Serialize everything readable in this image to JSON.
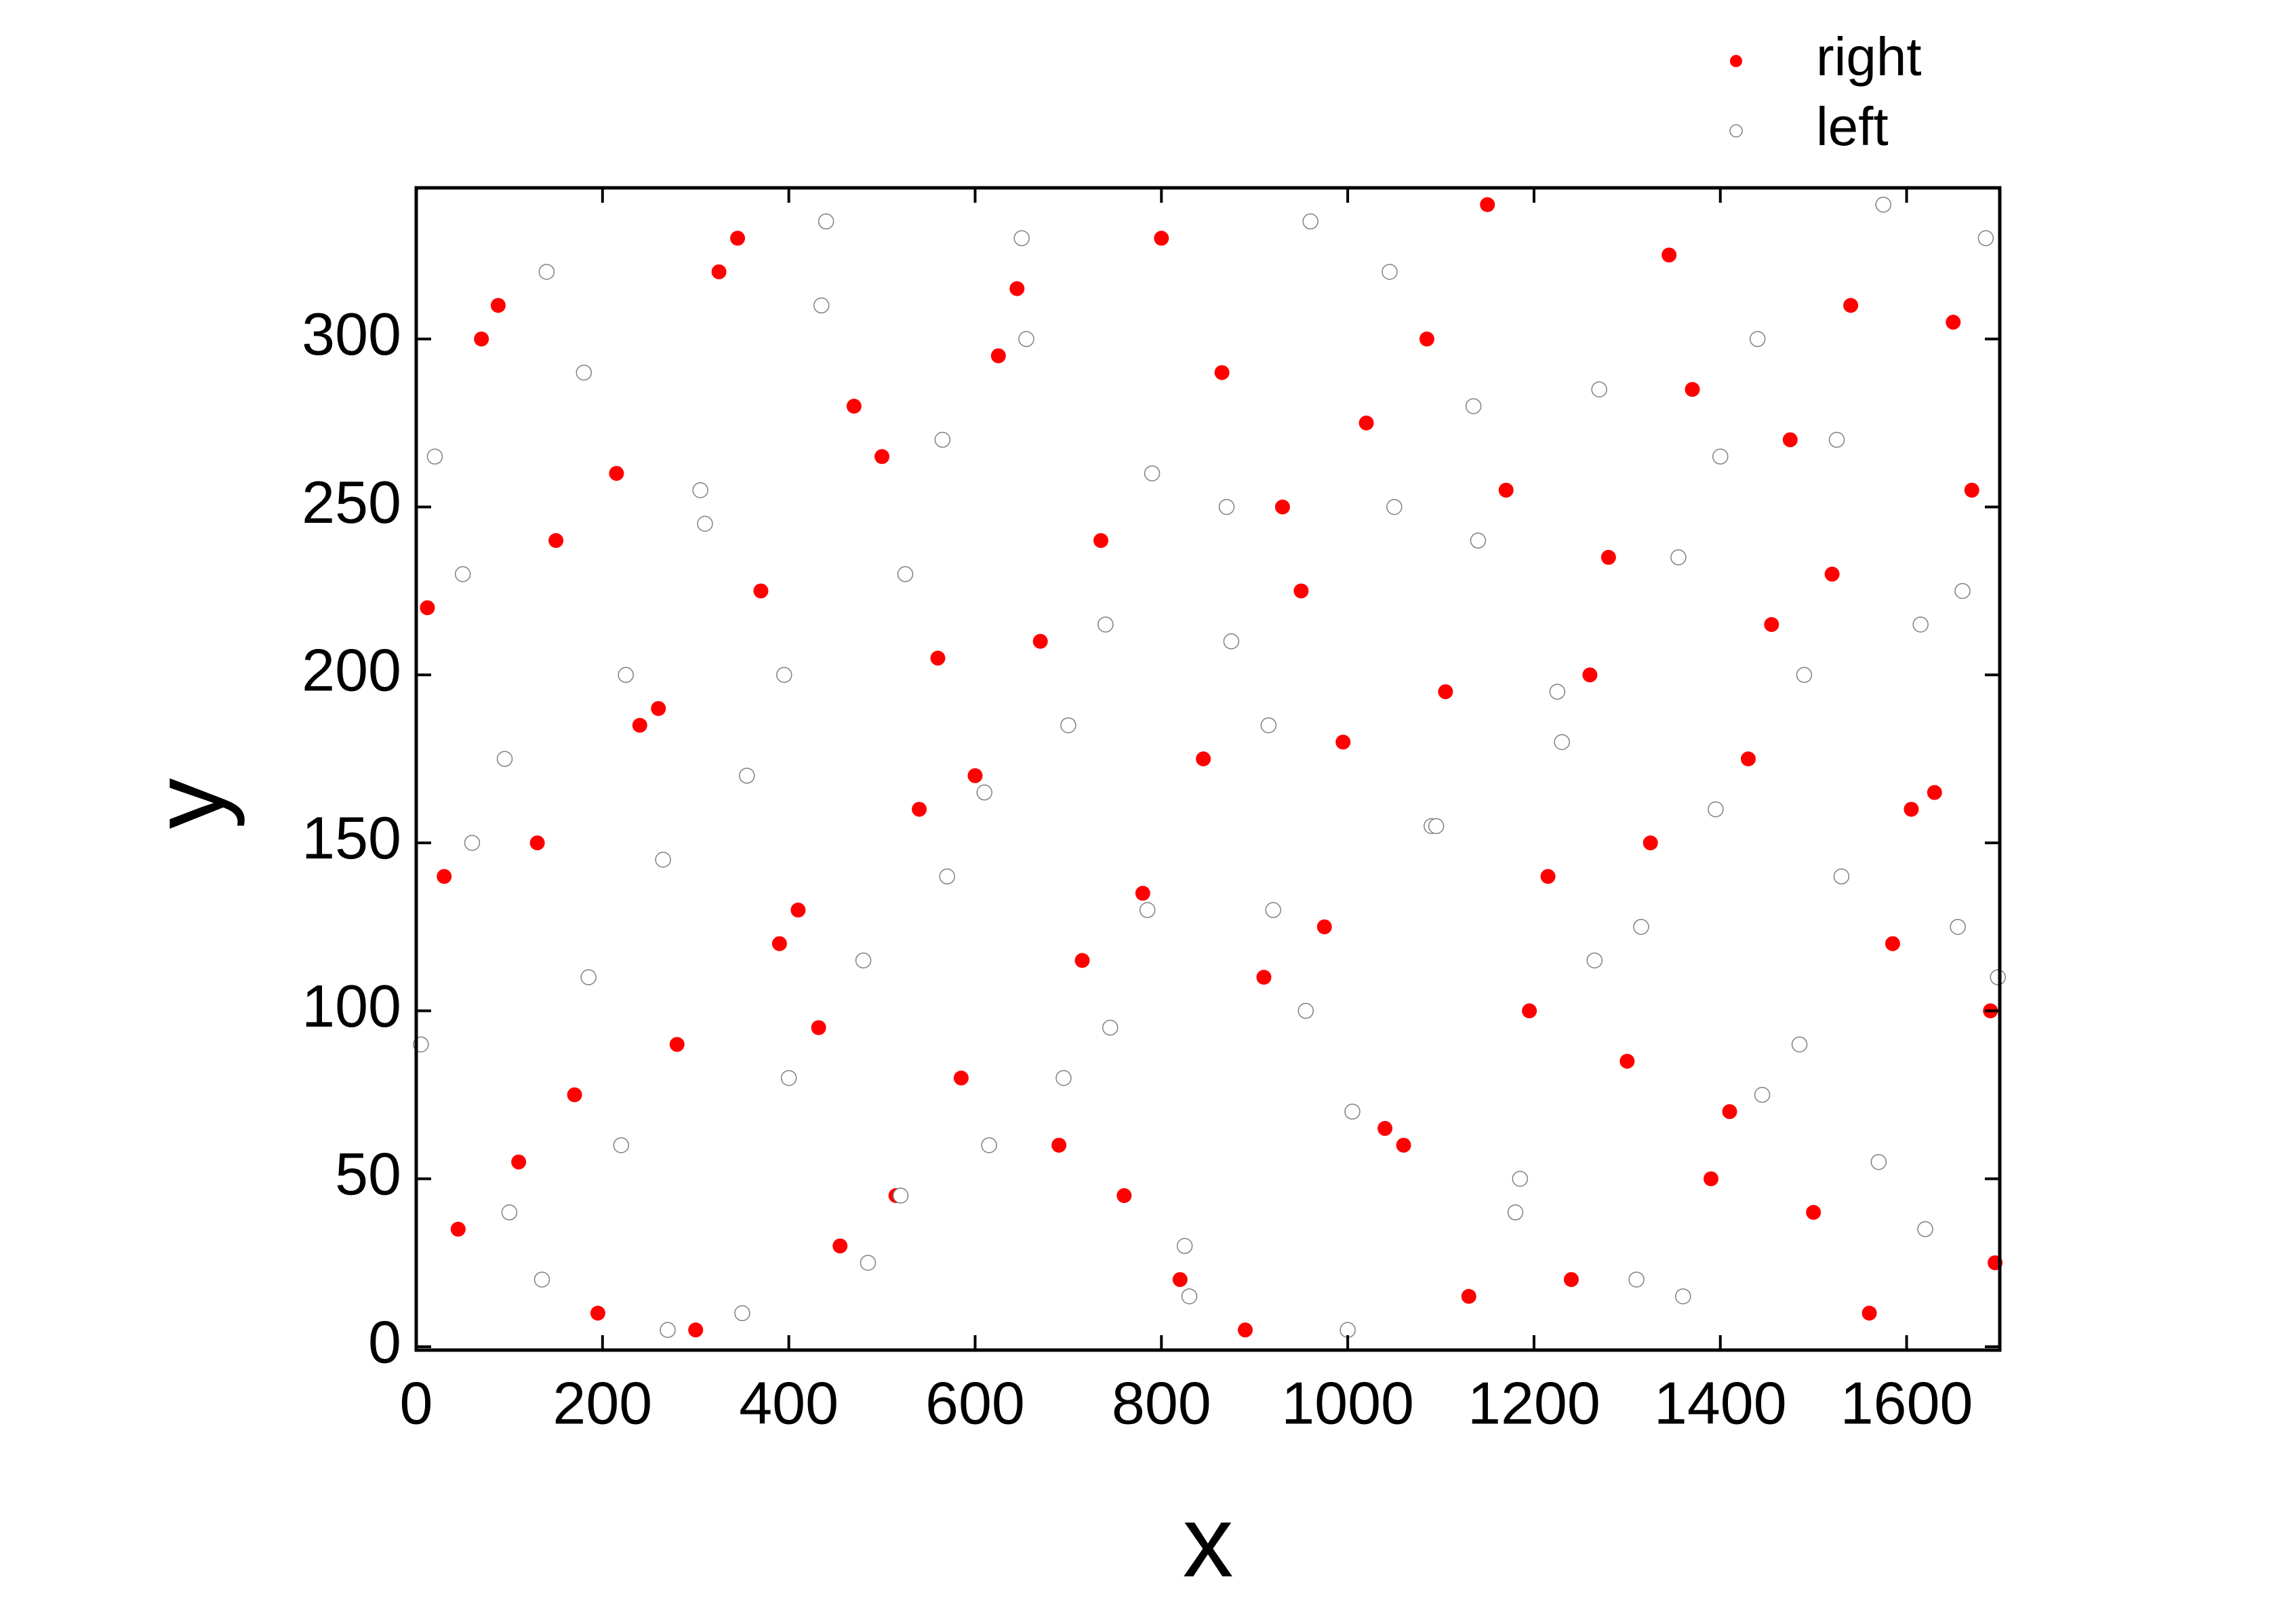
{
  "chart_data": {
    "type": "scatter",
    "xlabel": "x",
    "ylabel": "y",
    "xlim": [
      0,
      1700
    ],
    "ylim": [
      -1,
      345
    ],
    "xticks": [
      0,
      200,
      400,
      600,
      800,
      1000,
      1200,
      1400,
      1600
    ],
    "yticks": [
      0,
      50,
      100,
      150,
      200,
      250,
      300
    ],
    "legend": "top-right",
    "series": [
      {
        "name": "right",
        "color": "#ff0000",
        "filled": true,
        "x": [
          12,
          45,
          88,
          130,
          170,
          215,
          260,
          300,
          345,
          390,
          432,
          470,
          515,
          560,
          600,
          645,
          690,
          735,
          780,
          820,
          865,
          910,
          950,
          995,
          1040,
          1085,
          1130,
          1170,
          1215,
          1260,
          1300,
          1345,
          1390,
          1430,
          1475,
          1520,
          1560,
          1605,
          1650,
          1690,
          30,
          70,
          110,
          150,
          195,
          240,
          280,
          325,
          370,
          410,
          455,
          500,
          540,
          585,
          625,
          670,
          715,
          760,
          800,
          845,
          890,
          930,
          975,
          1020,
          1060,
          1105,
          1150,
          1195,
          1240,
          1280,
          1325,
          1370,
          1410,
          1455,
          1500,
          1540,
          1585,
          1630,
          1670,
          1695
        ],
        "values": [
          220,
          35,
          310,
          150,
          75,
          260,
          190,
          5,
          330,
          120,
          95,
          280,
          45,
          205,
          170,
          315,
          60,
          240,
          135,
          20,
          290,
          110,
          225,
          180,
          65,
          300,
          15,
          255,
          140,
          200,
          85,
          325,
          50,
          175,
          270,
          230,
          10,
          160,
          305,
          100,
          140,
          300,
          55,
          240,
          10,
          185,
          90,
          320,
          225,
          130,
          30,
          265,
          160,
          80,
          295,
          210,
          115,
          45,
          330,
          175,
          5,
          250,
          125,
          275,
          60,
          195,
          340,
          100,
          20,
          235,
          150,
          285,
          70,
          215,
          40,
          310,
          120,
          165,
          255,
          25
        ]
      },
      {
        "name": "left",
        "color": "#808080",
        "filled": false,
        "x": [
          20,
          60,
          100,
          140,
          185,
          225,
          270,
          310,
          355,
          400,
          440,
          485,
          525,
          570,
          615,
          655,
          700,
          745,
          790,
          830,
          875,
          920,
          960,
          1005,
          1050,
          1090,
          1135,
          1180,
          1225,
          1265,
          1310,
          1355,
          1395,
          1440,
          1485,
          1525,
          1570,
          1615,
          1655,
          1685,
          5,
          50,
          95,
          135,
          180,
          220,
          265,
          305,
          350,
          395,
          435,
          480,
          520,
          565,
          610,
          650,
          695,
          740,
          785,
          825,
          870,
          915,
          955,
          1000,
          1045,
          1095,
          1140,
          1185,
          1230,
          1270,
          1315,
          1360,
          1400,
          1445,
          1490,
          1530,
          1575,
          1620,
          1660,
          1698
        ],
        "values": [
          265,
          150,
          40,
          320,
          110,
          200,
          5,
          245,
          170,
          80,
          335,
          25,
          230,
          140,
          60,
          300,
          185,
          95,
          260,
          15,
          210,
          130,
          335,
          70,
          250,
          155,
          280,
          40,
          195,
          115,
          20,
          235,
          160,
          300,
          90,
          270,
          55,
          215,
          125,
          330,
          90,
          230,
          175,
          20,
          290,
          60,
          145,
          255,
          10,
          200,
          310,
          115,
          45,
          270,
          165,
          330,
          80,
          215,
          130,
          30,
          250,
          185,
          100,
          5,
          320,
          155,
          240,
          50,
          180,
          285,
          125,
          15,
          265,
          75,
          200,
          140,
          340,
          35,
          225,
          110
        ]
      }
    ]
  }
}
